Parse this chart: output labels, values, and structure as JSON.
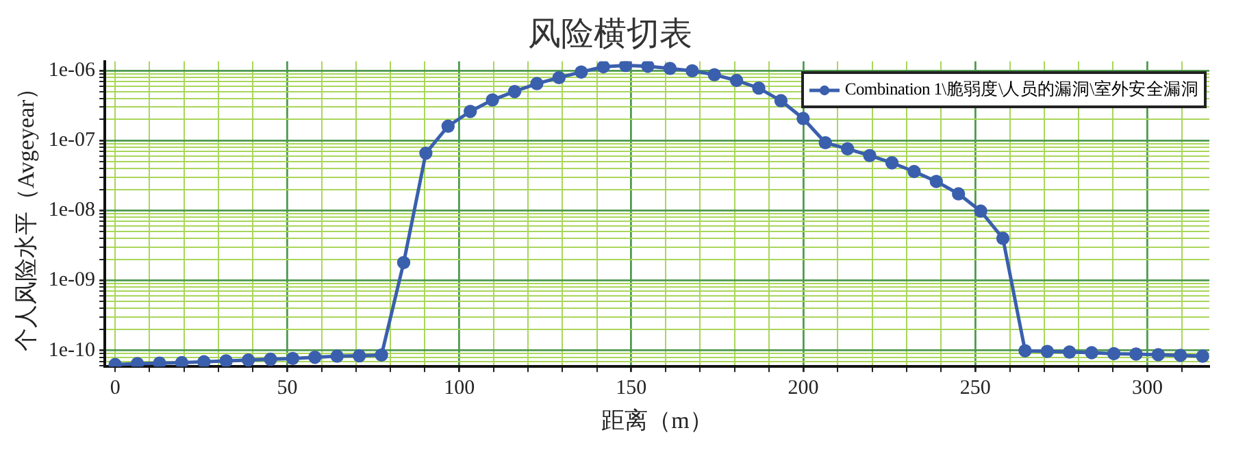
{
  "chart_data": {
    "type": "line",
    "title": "风险横切表",
    "xlabel": "距离（m）",
    "ylabel": "个人风险水平（Avgeyear）",
    "log": "y",
    "grid": true,
    "legend": "top right",
    "marker": "circle",
    "line_style": "solid",
    "x": [
      0,
      6.45,
      12.9,
      19.35,
      25.8,
      32.25,
      38.7,
      45.15,
      51.6,
      58.05,
      64.5,
      70.95,
      77.4,
      83.85,
      90.3,
      96.75,
      103.2,
      109.65,
      116.1,
      122.55,
      129,
      135.45,
      141.9,
      148.35,
      154.8,
      161.25,
      167.7,
      174.15,
      180.6,
      187.05,
      193.5,
      199.95,
      206.4,
      212.85,
      219.3,
      225.75,
      232.2,
      238.65,
      245.1,
      251.55,
      258,
      264.45,
      270.9,
      277.35,
      283.8,
      290.25,
      296.7,
      303.15,
      309.6,
      316.05
    ],
    "series": [
      {
        "name": "Combination 1\\脆弱度\\人员的漏洞\\室外安全漏洞",
        "color": "#3a5fad",
        "values": [
          6.3e-11,
          6.5e-11,
          6.6e-11,
          6.7e-11,
          6.9e-11,
          7.1e-11,
          7.3e-11,
          7.5e-11,
          7.7e-11,
          8e-11,
          8.3e-11,
          8.4e-11,
          8.6e-11,
          1.8e-09,
          6.6e-08,
          1.6e-07,
          2.6e-07,
          3.8e-07,
          5e-07,
          6.5e-07,
          7.9e-07,
          9.5e-07,
          1.13e-06,
          1.18e-06,
          1.15e-06,
          1.07e-06,
          9.9e-07,
          8.7e-07,
          7.2e-07,
          5.6e-07,
          3.7e-07,
          2.06e-07,
          9.3e-08,
          7.6e-08,
          6.1e-08,
          4.8e-08,
          3.6e-08,
          2.6e-08,
          1.73e-08,
          9.8e-09,
          4e-09,
          9.9e-11,
          9.7e-11,
          9.5e-11,
          9.3e-11,
          9e-11,
          8.9e-11,
          8.7e-11,
          8.5e-11,
          8.3e-11
        ]
      }
    ],
    "xlim": [
      -3,
      318
    ],
    "xticks": [
      0,
      {
        "value": 10,
        "label": null
      },
      {
        "value": 20,
        "label": null
      },
      {
        "value": 30,
        "label": null
      },
      {
        "value": 40,
        "label": null
      },
      50,
      {
        "value": 60,
        "label": null
      },
      {
        "value": 70,
        "label": null
      },
      {
        "value": 80,
        "label": null
      },
      {
        "value": 90,
        "label": null
      },
      100,
      {
        "value": 110,
        "label": null
      },
      {
        "value": 120,
        "label": null
      },
      {
        "value": 130,
        "label": null
      },
      {
        "value": 140,
        "label": null
      },
      150,
      {
        "value": 160,
        "label": null
      },
      {
        "value": 170,
        "label": null
      },
      {
        "value": 180,
        "label": null
      },
      {
        "value": 190,
        "label": null
      },
      200,
      {
        "value": 210,
        "label": null
      },
      {
        "value": 220,
        "label": null
      },
      {
        "value": 230,
        "label": null
      },
      {
        "value": 240,
        "label": null
      },
      250,
      {
        "value": 260,
        "label": null
      },
      {
        "value": 270,
        "label": null
      },
      {
        "value": 280,
        "label": null
      },
      {
        "value": 290,
        "label": null
      },
      300,
      {
        "value": 310,
        "label": null
      }
    ],
    "ylim": [
      5.9e-11,
      1.35e-06
    ],
    "yticks": [
      {
        "value": 6e-11,
        "label": null
      },
      {
        "value": 7e-11,
        "label": null
      },
      {
        "value": 8e-11,
        "label": null
      },
      {
        "value": 9e-11,
        "label": null
      },
      {
        "value": 1e-10,
        "label": "1e-10"
      },
      {
        "value": 2e-10,
        "label": null
      },
      {
        "value": 3e-10,
        "label": null
      },
      {
        "value": 4e-10,
        "label": null
      },
      {
        "value": 5e-10,
        "label": null
      },
      {
        "value": 6e-10,
        "label": null
      },
      {
        "value": 7e-10,
        "label": null
      },
      {
        "value": 8e-10,
        "label": null
      },
      {
        "value": 9e-10,
        "label": null
      },
      {
        "value": 1e-09,
        "label": "1e-09"
      },
      {
        "value": 2e-09,
        "label": null
      },
      {
        "value": 3e-09,
        "label": null
      },
      {
        "value": 4e-09,
        "label": null
      },
      {
        "value": 5e-09,
        "label": null
      },
      {
        "value": 6e-09,
        "label": null
      },
      {
        "value": 7e-09,
        "label": null
      },
      {
        "value": 8e-09,
        "label": null
      },
      {
        "value": 9e-09,
        "label": null
      },
      {
        "value": 1e-08,
        "label": "1e-08"
      },
      {
        "value": 2e-08,
        "label": null
      },
      {
        "value": 3e-08,
        "label": null
      },
      {
        "value": 4e-08,
        "label": null
      },
      {
        "value": 5e-08,
        "label": null
      },
      {
        "value": 6e-08,
        "label": null
      },
      {
        "value": 7e-08,
        "label": null
      },
      {
        "value": 8e-08,
        "label": null
      },
      {
        "value": 9e-08,
        "label": null
      },
      {
        "value": 1e-07,
        "label": "1e-07"
      },
      {
        "value": 2e-07,
        "label": null
      },
      {
        "value": 3e-07,
        "label": null
      },
      {
        "value": 4e-07,
        "label": null
      },
      {
        "value": 5e-07,
        "label": null
      },
      {
        "value": 6e-07,
        "label": null
      },
      {
        "value": 7e-07,
        "label": null
      },
      {
        "value": 8e-07,
        "label": null
      },
      {
        "value": 9e-07,
        "label": null
      },
      {
        "value": 1e-06,
        "label": "1e-06"
      }
    ]
  }
}
